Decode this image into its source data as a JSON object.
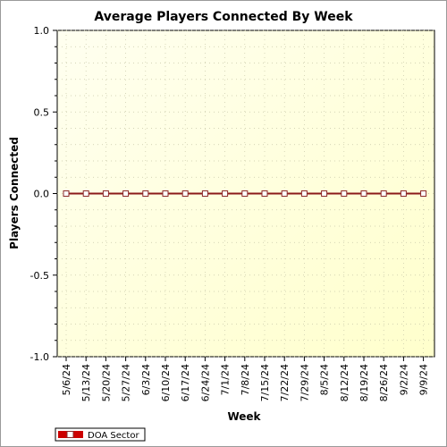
{
  "chart_data": {
    "type": "line",
    "title": "Average Players Connected By Week",
    "xlabel": "Week",
    "ylabel": "Players Connected",
    "categories": [
      "5/6/24",
      "5/13/24",
      "5/20/24",
      "5/27/24",
      "6/3/24",
      "6/10/24",
      "6/17/24",
      "6/24/24",
      "7/1/24",
      "7/8/24",
      "7/15/24",
      "7/22/24",
      "7/29/24",
      "8/5/24",
      "8/12/24",
      "8/19/24",
      "8/26/24",
      "9/2/24",
      "9/9/24"
    ],
    "series": [
      {
        "name": "DOA Sector",
        "values": [
          0,
          0,
          0,
          0,
          0,
          0,
          0,
          0,
          0,
          0,
          0,
          0,
          0,
          0,
          0,
          0,
          0,
          0,
          0
        ]
      }
    ],
    "ylim": [
      -1.0,
      1.0
    ],
    "yticks": [
      "-1.0",
      "-0.5",
      "0.0",
      "0.5",
      "1.0"
    ],
    "grid": true,
    "legend": "bottom-left",
    "colors": {
      "series": "#cc0000",
      "line": "#8b1a1a",
      "marker_edge": "#8b2a2a",
      "plot_bg_start": "#fffff0",
      "plot_bg_end": "#ffffcc"
    }
  }
}
